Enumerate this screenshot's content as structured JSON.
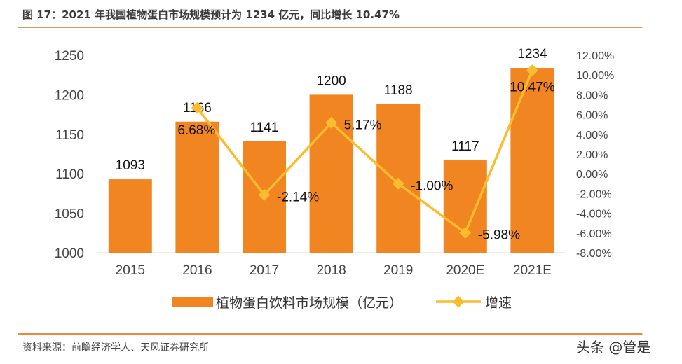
{
  "title": "图 17：2021 年我国植物蛋白市场规模预计为 1234 亿元，同比增长 10.47%",
  "source": "资料来源：前瞻经济学人、天风证券研究所",
  "watermark": "头条 @管是",
  "chart_data": {
    "type": "bar+line",
    "categories": [
      "2015",
      "2016",
      "2017",
      "2018",
      "2019",
      "2020E",
      "2021E"
    ],
    "series": [
      {
        "name": "植物蛋白饮料市场规模（亿元）",
        "type": "bar",
        "axis": "left",
        "color": "#f08522",
        "values": [
          1093,
          1166,
          1141,
          1200,
          1188,
          1117,
          1234
        ],
        "labels": [
          "1093",
          "1166",
          "1141",
          "1200",
          "1188",
          "1117",
          "1234"
        ]
      },
      {
        "name": "增速",
        "type": "line",
        "axis": "right",
        "color": "#fbbd2e",
        "values": [
          null,
          6.68,
          -2.14,
          5.17,
          -1.0,
          -5.98,
          10.47
        ],
        "labels": [
          "",
          "6.68%",
          "-2.14%",
          "5.17%",
          "-1.00%",
          "-5.98%",
          "10.47%"
        ]
      }
    ],
    "left_axis": {
      "ylim": [
        1000,
        1250
      ],
      "ticks": [
        "1000",
        "1050",
        "1100",
        "1150",
        "1200",
        "1250"
      ]
    },
    "right_axis": {
      "ylim": [
        -8,
        12
      ],
      "ticks": [
        "-8.00%",
        "-6.00%",
        "-4.00%",
        "-2.00%",
        "0.00%",
        "2.00%",
        "4.00%",
        "6.00%",
        "8.00%",
        "10.00%",
        "12.00%"
      ]
    },
    "grid": false,
    "legend": "bottom"
  }
}
